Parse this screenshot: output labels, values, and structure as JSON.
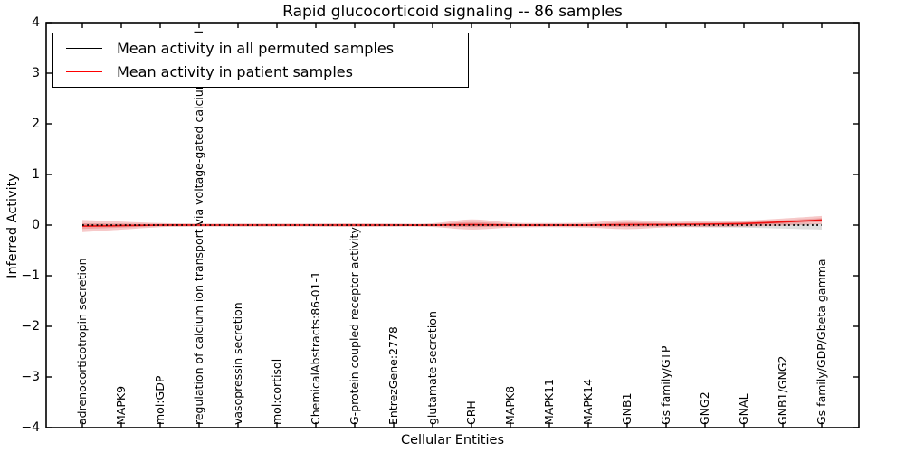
{
  "chart_data": {
    "type": "line",
    "title": "Rapid glucocorticoid signaling -- 86 samples",
    "xlabel": "Cellular Entities",
    "ylabel": "Inferred Activity",
    "ylim": [
      -4,
      4
    ],
    "y_tick_step": 1,
    "grid": false,
    "legend_position": "upper left",
    "categories": [
      "adrenocorticotropin secretion",
      "MAPK9",
      "mol:GDP",
      "regulation of calcium ion transport via voltage-gated calcium channel",
      "vasopressin secretion",
      "mol:cortisol",
      "ChemicalAbstracts:86-01-1",
      "G-protein coupled receptor activity",
      "EntrezGene:2778",
      "glutamate secretion",
      "CRH",
      "MAPK8",
      "MAPK11",
      "MAPK14",
      "GNB1",
      "Gs family/GTP",
      "GNG2",
      "GNAL",
      "GNB1/GNG2",
      "Gs family/GDP/Gbeta gamma"
    ],
    "series": [
      {
        "name": "Mean activity in all permuted samples",
        "color": "#000000",
        "line_style": "dotted",
        "values": [
          0,
          0,
          0,
          0,
          0,
          0,
          0,
          0,
          0,
          0,
          0,
          0,
          0,
          0,
          0,
          0,
          0,
          0,
          0,
          0
        ],
        "band_halfwidth": [
          0.025,
          0.02,
          0.02,
          0.02,
          0.02,
          0.02,
          0.02,
          0.02,
          0.02,
          0.02,
          0.025,
          0.02,
          0.02,
          0.02,
          0.025,
          0.03,
          0.035,
          0.04,
          0.05,
          0.06
        ],
        "band_offset": [
          0,
          0,
          0,
          0,
          0,
          0,
          0,
          0,
          0,
          0,
          0,
          0,
          0,
          0,
          0,
          0,
          -0.005,
          -0.01,
          -0.02,
          -0.03
        ],
        "band_color": "rgba(0,0,0,0.13)"
      },
      {
        "name": "Mean activity in patient samples",
        "color": "#ee1111",
        "line_style": "solid",
        "values": [
          -0.02,
          -0.01,
          0,
          0,
          0,
          0,
          0,
          0,
          0,
          0,
          0.01,
          0,
          0,
          0,
          0.01,
          0.01,
          0.02,
          0.03,
          0.06,
          0.1
        ],
        "band_outer": [
          0.12,
          0.08,
          0.04,
          0.03,
          0.03,
          0.03,
          0.03,
          0.035,
          0.03,
          0.035,
          0.1,
          0.05,
          0.04,
          0.05,
          0.09,
          0.055,
          0.06,
          0.06,
          0.07,
          0.08
        ],
        "band_inner": [
          0.055,
          0.04,
          0.02,
          0.015,
          0.015,
          0.015,
          0.015,
          0.018,
          0.015,
          0.018,
          0.05,
          0.025,
          0.02,
          0.025,
          0.045,
          0.028,
          0.03,
          0.03,
          0.035,
          0.04
        ],
        "band_color": "rgba(222,45,45,0.26)"
      }
    ]
  },
  "axes": {
    "y_ticks": [
      {
        "label": "4",
        "value": 4
      },
      {
        "label": "3",
        "value": 3
      },
      {
        "label": "2",
        "value": 2
      },
      {
        "label": "1",
        "value": 1
      },
      {
        "label": "0",
        "value": 0
      },
      {
        "label": "−1",
        "value": -1
      },
      {
        "label": "−2",
        "value": -2
      },
      {
        "label": "−3",
        "value": -3
      },
      {
        "label": "−4",
        "value": -4
      }
    ],
    "spine_color": "#000000"
  },
  "legend": {
    "entries": [
      {
        "label": "Mean activity in all permuted samples",
        "color": "#000000"
      },
      {
        "label": "Mean activity in patient samples",
        "color": "#ff0000"
      }
    ]
  }
}
